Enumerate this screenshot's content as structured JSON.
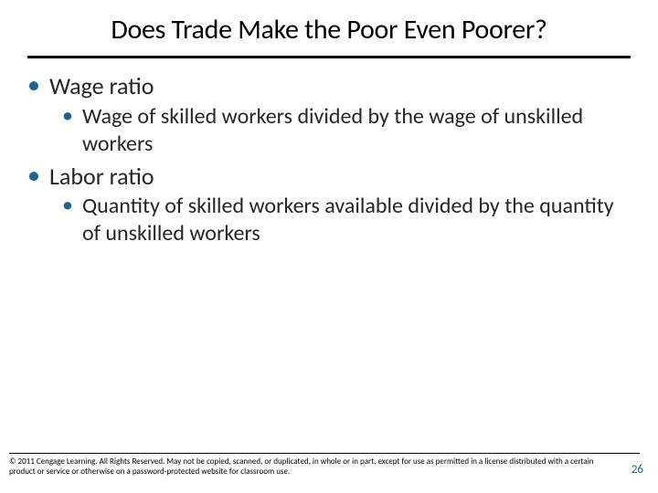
{
  "colors": {
    "bullet": "#1f6391",
    "text": "#262626",
    "title": "#000000",
    "rule": "#000000",
    "background": "#ffffff",
    "pagenum": "#1f6391"
  },
  "title": "Does Trade Make the Poor Even Poorer?",
  "bullets": [
    {
      "level": 1,
      "text": "Wage ratio"
    },
    {
      "level": 2,
      "text": "Wage of skilled workers divided by the wage of unskilled workers"
    },
    {
      "level": 1,
      "text": "Labor ratio"
    },
    {
      "level": 2,
      "text": "Quantity of skilled workers available divided by the quantity of unskilled workers"
    }
  ],
  "copyright": "© 2011 Cengage Learning. All Rights Reserved. May not be copied, scanned, or duplicated, in whole or in part, except for use as permitted in a license distributed with a certain product or service or otherwise on a password-protected website for classroom use.",
  "page_number": "26"
}
